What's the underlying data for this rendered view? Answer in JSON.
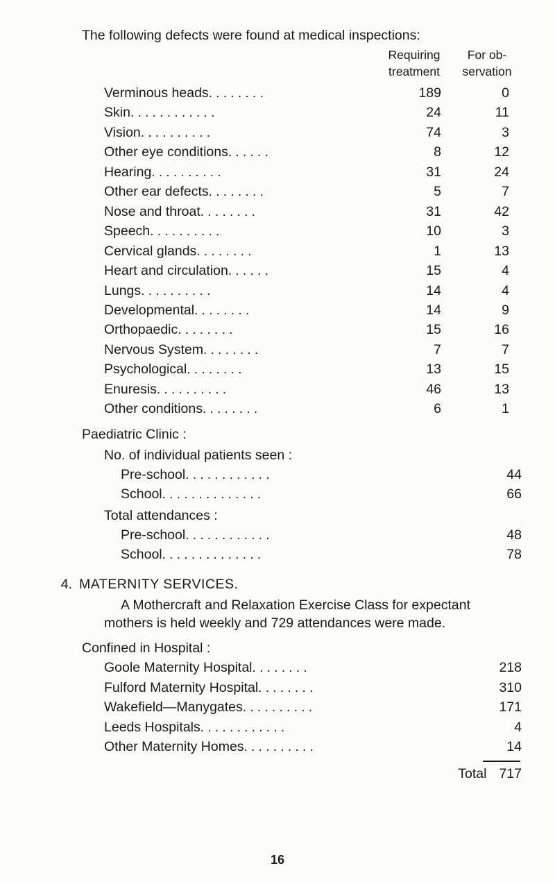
{
  "intro_line": "The following defects were found at medical inspections:",
  "col_headers": {
    "col1_line1": "Requiring",
    "col1_line2": "treatment",
    "col2_line1": "For ob-",
    "col2_line2": "servation"
  },
  "defects": [
    {
      "label": "Verminous heads",
      "dots": " . .       . .       . .       . . ",
      "treatment": "189",
      "observation": "0"
    },
    {
      "label": "Skin",
      "dots": " . .       . .       . .       . .       . .       . . ",
      "treatment": "24",
      "observation": "11"
    },
    {
      "label": "Vision",
      "dots": "         . .       . .       . .       . .       . . ",
      "treatment": "74",
      "observation": "3"
    },
    {
      "label": "Other eye conditions",
      "dots": "      . .       . .       . . ",
      "treatment": "8",
      "observation": "12"
    },
    {
      "label": "Hearing",
      "dots": "      . .       . .       . .       . .       . . ",
      "treatment": "31",
      "observation": "24"
    },
    {
      "label": "Other ear defects",
      "dots": " . .       . .       . .       . . ",
      "treatment": "5",
      "observation": "7"
    },
    {
      "label": "Nose and throat",
      "dots": " . .       . .       . .       . . ",
      "treatment": "31",
      "observation": "42"
    },
    {
      "label": "Speech",
      "dots": "       . .       . .       . .       . .       . . ",
      "treatment": "10",
      "observation": "3"
    },
    {
      "label": "Cervical glands",
      "dots": "   . .       . .       . .       . . ",
      "treatment": "1",
      "observation": "13"
    },
    {
      "label": "Heart and circulation",
      "dots": "     . .       . .       . . ",
      "treatment": "15",
      "observation": "4"
    },
    {
      "label": "Lungs",
      "dots": "         . .       . .       . .       . .       . . ",
      "treatment": "14",
      "observation": "4"
    },
    {
      "label": "Developmental",
      "dots": "     . .       . .       . .       . . ",
      "treatment": "14",
      "observation": "9"
    },
    {
      "label": "Orthopaedic",
      "dots": "        . .       . .       . .       . . ",
      "treatment": "15",
      "observation": "16"
    },
    {
      "label": "Nervous System",
      "dots": "   . .       . .       . .       . . ",
      "treatment": "7",
      "observation": "7"
    },
    {
      "label": "Psychological",
      "dots": "     . .       . .       . .       . . ",
      "treatment": "13",
      "observation": "15"
    },
    {
      "label": "Enuresis",
      "dots": "     . .       . .       . .       . .       . . ",
      "treatment": "46",
      "observation": "13"
    },
    {
      "label": "Other conditions",
      "dots": " . .       . .       . .       . . ",
      "treatment": "6",
      "observation": "1"
    }
  ],
  "paediatric": {
    "heading": "Paediatric Clinic :",
    "sub1": "No. of individual patients seen :",
    "rows1": [
      {
        "label": "Pre-school",
        "dots": "        . .       . .       . .       . .       . .       . .   ",
        "value": "44"
      },
      {
        "label": "School",
        "dots": "      . .       . .       . .       . .       . .       . .       . .   ",
        "value": "66"
      }
    ],
    "sub2": "Total attendances :",
    "rows2": [
      {
        "label": "Pre-school",
        "dots": "        . .       . .       . .       . .       . .       . .   ",
        "value": "48"
      },
      {
        "label": "School",
        "dots": "      . .       . .       . .       . .       . .       . .       . .   ",
        "value": "78"
      }
    ]
  },
  "section4": {
    "number": "4.",
    "title": "MATERNITY  SERVICES.",
    "paragraph": "A Mothercraft and Relaxation Exercise Class for expectant mothers is held weekly and 729 attendances were made.",
    "confined_heading": "Confined in Hospital :",
    "hospitals": [
      {
        "label": "Goole Maternity Hospital",
        "dots": "          . .       . .       . .       . . ",
        "value": "218"
      },
      {
        "label": "Fulford Maternity Hospital",
        "dots": "        . .       . .       . .       . . ",
        "value": "310"
      },
      {
        "label": "Wakefield—Manygates",
        "dots": "  . .        . .       . .       . .       . . ",
        "value": "171"
      },
      {
        "label": "Leeds Hospitals",
        "dots": "    . .        . .       . .       . .       . .       . . ",
        "value": "4"
      },
      {
        "label": "Other Maternity Homes",
        "dots": " . .        . .       . .       . .       . . ",
        "value": "14"
      }
    ],
    "total_label": "Total",
    "total_value": "717"
  },
  "page_number": "16"
}
